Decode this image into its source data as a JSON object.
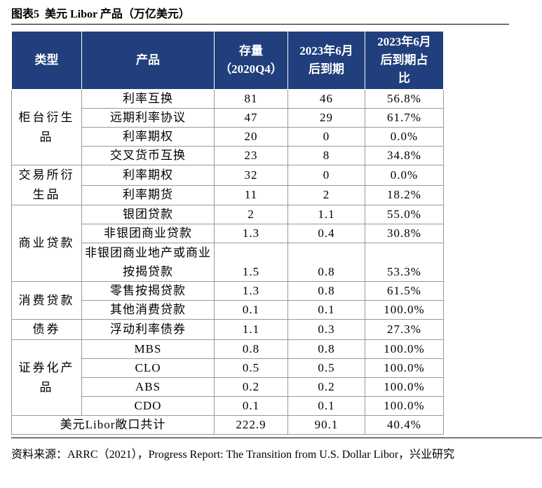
{
  "header": {
    "title": "图表5  美元 Libor 产品（万亿美元）"
  },
  "table": {
    "columns": [
      "类型",
      "产品",
      "存量\n（2020Q4）",
      "2023年6月\n后到期",
      "2023年6月\n后到期占\n比"
    ],
    "groups": [
      {
        "type": "柜台衍生品",
        "rows": [
          [
            "利率互换",
            "81",
            "46",
            "56.8%"
          ],
          [
            "远期利率协议",
            "47",
            "29",
            "61.7%"
          ],
          [
            "利率期权",
            "20",
            "0",
            "0.0%"
          ],
          [
            "交叉货币互换",
            "23",
            "8",
            "34.8%"
          ]
        ]
      },
      {
        "type": "交易所衍生品",
        "rows": [
          [
            "利率期权",
            "32",
            "0",
            "0.0%"
          ],
          [
            "利率期货",
            "11",
            "2",
            "18.2%"
          ]
        ]
      },
      {
        "type": "商业贷款",
        "rows": [
          [
            "银团贷款",
            "2",
            "1.1",
            "55.0%"
          ],
          [
            "非银团商业贷款",
            "1.3",
            "0.4",
            "30.8%"
          ],
          [
            "非银团商业地产或商业按揭贷款",
            "1.5",
            "0.8",
            "53.3%"
          ]
        ]
      },
      {
        "type": "消费贷款",
        "rows": [
          [
            "零售按揭贷款",
            "1.3",
            "0.8",
            "61.5%"
          ],
          [
            "其他消费贷款",
            "0.1",
            "0.1",
            "100.0%"
          ]
        ]
      },
      {
        "type": "债券",
        "rows": [
          [
            "浮动利率债券",
            "1.1",
            "0.3",
            "27.3%"
          ]
        ]
      },
      {
        "type": "证券化产品",
        "rows": [
          [
            "MBS",
            "0.8",
            "0.8",
            "100.0%"
          ],
          [
            "CLO",
            "0.5",
            "0.5",
            "100.0%"
          ],
          [
            "ABS",
            "0.2",
            "0.2",
            "100.0%"
          ],
          [
            "CDO",
            "0.1",
            "0.1",
            "100.0%"
          ]
        ]
      }
    ],
    "total": [
      "美元Libor敞口共计",
      "222.9",
      "90.1",
      "40.4%"
    ]
  },
  "footer": {
    "source": "资料来源：ARRC（2021），Progress Report: The Transition from U.S. Dollar Libor，兴业研究"
  }
}
